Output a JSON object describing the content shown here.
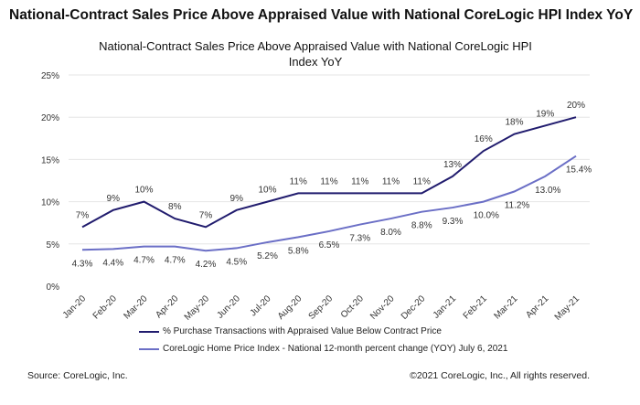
{
  "header": {
    "title": "National-Contract Sales Price Above Appraised Value with National CoreLogic  HPI Index YoY"
  },
  "footer": {
    "source": "Source: CoreLogic, Inc.",
    "copyright": "©2021 CoreLogic, Inc., All rights reserved."
  },
  "chart_data": {
    "type": "line",
    "title": "National-Contract Sales Price Above Appraised Value with National CoreLogic HPI Index YoY",
    "xlabel": "",
    "ylabel": "",
    "ylim": [
      0,
      25
    ],
    "yticks": [
      "0%",
      "5%",
      "10%",
      "15%",
      "20%",
      "25%"
    ],
    "grid": true,
    "legend_position": "bottom",
    "categories": [
      "Jan-20",
      "Feb-20",
      "Mar-20",
      "Apr-20",
      "May-20",
      "Jun-20",
      "Jul-20",
      "Aug-20",
      "Sep-20",
      "Oct-20",
      "Nov-20",
      "Dec-20",
      "Jan-21",
      "Feb-21",
      "Mar-21",
      "Apr-21",
      "May-21"
    ],
    "series": [
      {
        "name": "% Purchase Transactions with Appraised Value Below Contract Price",
        "color": "#211c6e",
        "values": [
          7,
          9,
          10,
          8,
          7,
          9,
          10,
          11,
          11,
          11,
          11,
          11,
          13,
          16,
          18,
          19,
          20
        ],
        "labels": [
          "7%",
          "9%",
          "10%",
          "8%",
          "7%",
          "9%",
          "10%",
          "11%",
          "11%",
          "11%",
          "11%",
          "11%",
          "13%",
          "16%",
          "18%",
          "19%",
          "20%"
        ]
      },
      {
        "name": "CoreLogic Home Price Index - National 12-month percent change (YOY) July 6, 2021",
        "color": "#6b6fc6",
        "values": [
          4.3,
          4.4,
          4.7,
          4.7,
          4.2,
          4.5,
          5.2,
          5.8,
          6.5,
          7.3,
          8.0,
          8.8,
          9.3,
          10.0,
          11.2,
          13.0,
          15.4
        ],
        "labels": [
          "4.3%",
          "4.4%",
          "4.7%",
          "4.7%",
          "4.2%",
          "4.5%",
          "5.2%",
          "5.8%",
          "6.5%",
          "7.3%",
          "8.0%",
          "8.8%",
          "9.3%",
          "10.0%",
          "11.2%",
          "13.0%",
          "15.4%"
        ]
      }
    ]
  }
}
